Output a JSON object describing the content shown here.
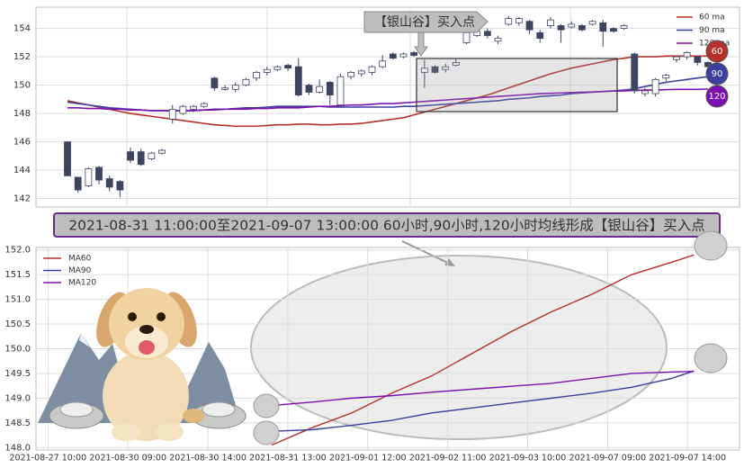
{
  "chart_data": [
    {
      "type": "candlestick",
      "annotation": "【银山谷】买入点",
      "banner": "2021-08-31 11:00:00至2021-09-07 13:00:00 60小时,90小时,120小时均线形成【银山谷】买入点",
      "badges": [
        "60",
        "90",
        "120"
      ],
      "up_color": "#ffffff",
      "down_color": "#3d4461",
      "ylim": [
        141.4,
        155.5
      ],
      "yticks": [
        142,
        144,
        146,
        148,
        150,
        152,
        154
      ],
      "grid": true,
      "legend": "upper right",
      "open": [
        146,
        143.5,
        142.9,
        144.2,
        143.4,
        143.2,
        145.3,
        145.3,
        144.8,
        145.2,
        147.6,
        148.0,
        148.3,
        148.5,
        150.5,
        149.7,
        149.7,
        150.0,
        150.5,
        150.9,
        151.1,
        151.4,
        151.3,
        150.0,
        149.5,
        150.2,
        148.6,
        150.6,
        150.8,
        150.9,
        151.3,
        152.2,
        152.0,
        152.3,
        150.9,
        151.3,
        151.1,
        151.4,
        153.0,
        153.5,
        153.8,
        153.1,
        154.3,
        154.4,
        154.5,
        153.7,
        154.2,
        154.2,
        154.1,
        154.2,
        154.3,
        154.4,
        154.0,
        154.0,
        152.2,
        149.4,
        149.4,
        150.5,
        151.8,
        152.0,
        152.0,
        151.6
      ],
      "high": [
        146,
        143.5,
        144.2,
        144.3,
        143.6,
        143.3,
        145.6,
        145.5,
        145.3,
        145.5,
        148.6,
        148.6,
        148.6,
        148.8,
        150.6,
        150.0,
        150.2,
        150.5,
        151.0,
        151.3,
        151.4,
        151.5,
        151.9,
        150.1,
        150.4,
        150.3,
        150.8,
        151.0,
        151.1,
        151.4,
        152.1,
        152.3,
        152.3,
        152.4,
        151.8,
        151.4,
        151.5,
        151.9,
        153.9,
        154.0,
        154.0,
        153.5,
        154.9,
        154.8,
        154.6,
        153.9,
        154.8,
        154.3,
        154.5,
        154.3,
        154.6,
        154.6,
        154.1,
        154.3,
        152.3,
        149.8,
        150.5,
        150.8,
        152.1,
        152.4,
        152.1,
        151.7
      ],
      "low": [
        143.6,
        142.4,
        142.8,
        143.0,
        142.5,
        142.1,
        144.5,
        144.3,
        144.7,
        145.1,
        147.3,
        147.9,
        148.1,
        148.4,
        149.6,
        149.6,
        149.5,
        149.9,
        150.3,
        150.7,
        151.0,
        151.0,
        149.2,
        149.3,
        149.4,
        148.6,
        148.5,
        150.4,
        150.6,
        150.7,
        151.2,
        151.8,
        151.9,
        152.0,
        149.8,
        150.8,
        150.9,
        151.3,
        152.9,
        153.4,
        153.3,
        152.9,
        154.2,
        154.2,
        153.6,
        153.0,
        154.0,
        153.0,
        154.0,
        153.8,
        154.2,
        152.7,
        153.7,
        153.9,
        149.4,
        149.2,
        149.2,
        150.3,
        151.6,
        151.8,
        151.4,
        151.1
      ],
      "close": [
        143.6,
        142.6,
        144.1,
        143.3,
        142.8,
        142.6,
        144.7,
        144.4,
        145.2,
        145.4,
        148.3,
        148.5,
        148.5,
        148.7,
        149.8,
        149.8,
        150.0,
        150.4,
        150.9,
        151.1,
        151.3,
        151.2,
        149.3,
        149.5,
        149.9,
        149.3,
        150.6,
        150.9,
        151.0,
        151.3,
        151.7,
        151.9,
        152.2,
        152.1,
        151.2,
        150.9,
        151.3,
        151.6,
        153.7,
        153.8,
        153.5,
        153.3,
        154.7,
        154.7,
        153.9,
        153.3,
        154.6,
        153.9,
        154.3,
        153.9,
        154.5,
        153.8,
        153.8,
        154.2,
        149.6,
        149.6,
        150.4,
        150.7,
        152.0,
        152.3,
        151.6,
        151.3
      ],
      "series": [
        {
          "name": "60 ma",
          "color": "#b5302a",
          "values": [
            148.9,
            148.75,
            148.6,
            148.45,
            148.3,
            148.15,
            148.0,
            147.9,
            147.8,
            147.7,
            147.6,
            147.5,
            147.4,
            147.3,
            147.2,
            147.15,
            147.1,
            147.1,
            147.1,
            147.15,
            147.2,
            147.2,
            147.25,
            147.25,
            147.2,
            147.2,
            147.25,
            147.25,
            147.3,
            147.4,
            147.5,
            147.6,
            147.7,
            147.9,
            148.1,
            148.3,
            148.5,
            148.7,
            148.9,
            149.1,
            149.3,
            149.55,
            149.8,
            150.05,
            150.3,
            150.55,
            150.8,
            151.0,
            151.2,
            151.35,
            151.5,
            151.65,
            151.8,
            151.9,
            152.0,
            152.0,
            152.0,
            152.05,
            152.05,
            152.05,
            152.05,
            152.05
          ]
        },
        {
          "name": "90 ma",
          "color": "#3b3fa0",
          "values": [
            148.8,
            148.7,
            148.6,
            148.5,
            148.4,
            148.35,
            148.3,
            148.25,
            148.2,
            148.2,
            148.2,
            148.2,
            148.2,
            148.25,
            148.3,
            148.3,
            148.35,
            148.4,
            148.4,
            148.45,
            148.5,
            148.5,
            148.5,
            148.5,
            148.5,
            148.45,
            148.45,
            148.45,
            148.45,
            148.45,
            148.45,
            148.45,
            148.5,
            148.5,
            148.55,
            148.6,
            148.65,
            148.7,
            148.75,
            148.8,
            148.85,
            148.9,
            149.0,
            149.05,
            149.1,
            149.2,
            149.25,
            149.3,
            149.4,
            149.45,
            149.5,
            149.55,
            149.6,
            149.65,
            149.75,
            149.9,
            150.05,
            150.2,
            150.3,
            150.4,
            150.5,
            150.6
          ]
        },
        {
          "name": "120 ma",
          "color": "#7d10b0",
          "values": [
            148.4,
            148.4,
            148.35,
            148.35,
            148.3,
            148.3,
            148.25,
            148.25,
            148.2,
            148.2,
            148.2,
            148.2,
            148.2,
            148.25,
            148.25,
            148.3,
            148.3,
            148.3,
            148.35,
            148.35,
            148.4,
            148.4,
            148.4,
            148.45,
            148.5,
            148.5,
            148.55,
            148.6,
            148.6,
            148.65,
            148.7,
            148.7,
            148.75,
            148.8,
            148.85,
            148.9,
            148.95,
            149.0,
            149.05,
            149.1,
            149.15,
            149.2,
            149.25,
            149.3,
            149.35,
            149.4,
            149.42,
            149.45,
            149.48,
            149.5,
            149.52,
            149.55,
            149.58,
            149.6,
            149.62,
            149.65,
            149.65,
            149.68,
            149.7,
            149.7,
            149.7,
            149.72
          ]
        }
      ]
    },
    {
      "type": "line",
      "xlim": [
        -0.15,
        8.65
      ],
      "xticks": [
        {
          "value": 0,
          "label": "2021-08-27 10:00"
        },
        {
          "value": 1,
          "label": "2021-08-30 09:00"
        },
        {
          "value": 2,
          "label": "2021-08-30 14:00"
        },
        {
          "value": 3,
          "label": "2021-08-31 13:00"
        },
        {
          "value": 4,
          "label": "2021-09-01 12:00"
        },
        {
          "value": 5,
          "label": "2021-09-02 11:00"
        },
        {
          "value": 6,
          "label": "2021-09-03 10:00"
        },
        {
          "value": 7,
          "label": "2021-09-07 09:00"
        },
        {
          "value": 8,
          "label": "2021-09-07 14:00"
        }
      ],
      "ylim": [
        147.95,
        152.05
      ],
      "yticks": [
        {
          "value": 148,
          "label": "148.0"
        },
        148.5,
        {
          "value": 149,
          "label": "149.0"
        },
        149.5,
        {
          "value": 150,
          "label": "150.0"
        },
        150.5,
        {
          "value": 151,
          "label": "151.0"
        },
        151.5,
        {
          "value": 152,
          "label": "152.0"
        }
      ],
      "grid": true,
      "legend": "upper left",
      "x": [
        2.8,
        3.3,
        3.8,
        4.3,
        4.8,
        5.3,
        5.8,
        6.3,
        6.8,
        7.3,
        7.8,
        8.08
      ],
      "series": [
        {
          "name": "MA60",
          "color": "#b5302a",
          "values": [
            148.05,
            148.4,
            148.7,
            149.1,
            149.45,
            149.9,
            150.35,
            150.75,
            151.1,
            151.5,
            151.75,
            151.9
          ]
        },
        {
          "name": "MA90",
          "color": "#3b3fa0",
          "values": [
            148.33,
            148.36,
            148.45,
            148.55,
            148.7,
            148.8,
            148.9,
            149.0,
            149.1,
            149.22,
            149.4,
            149.55
          ]
        },
        {
          "name": "MA120",
          "color": "#7d10b0",
          "values": [
            148.85,
            148.92,
            149.0,
            149.05,
            149.12,
            149.18,
            149.24,
            149.3,
            149.4,
            149.5,
            149.53,
            149.54
          ]
        }
      ]
    }
  ]
}
